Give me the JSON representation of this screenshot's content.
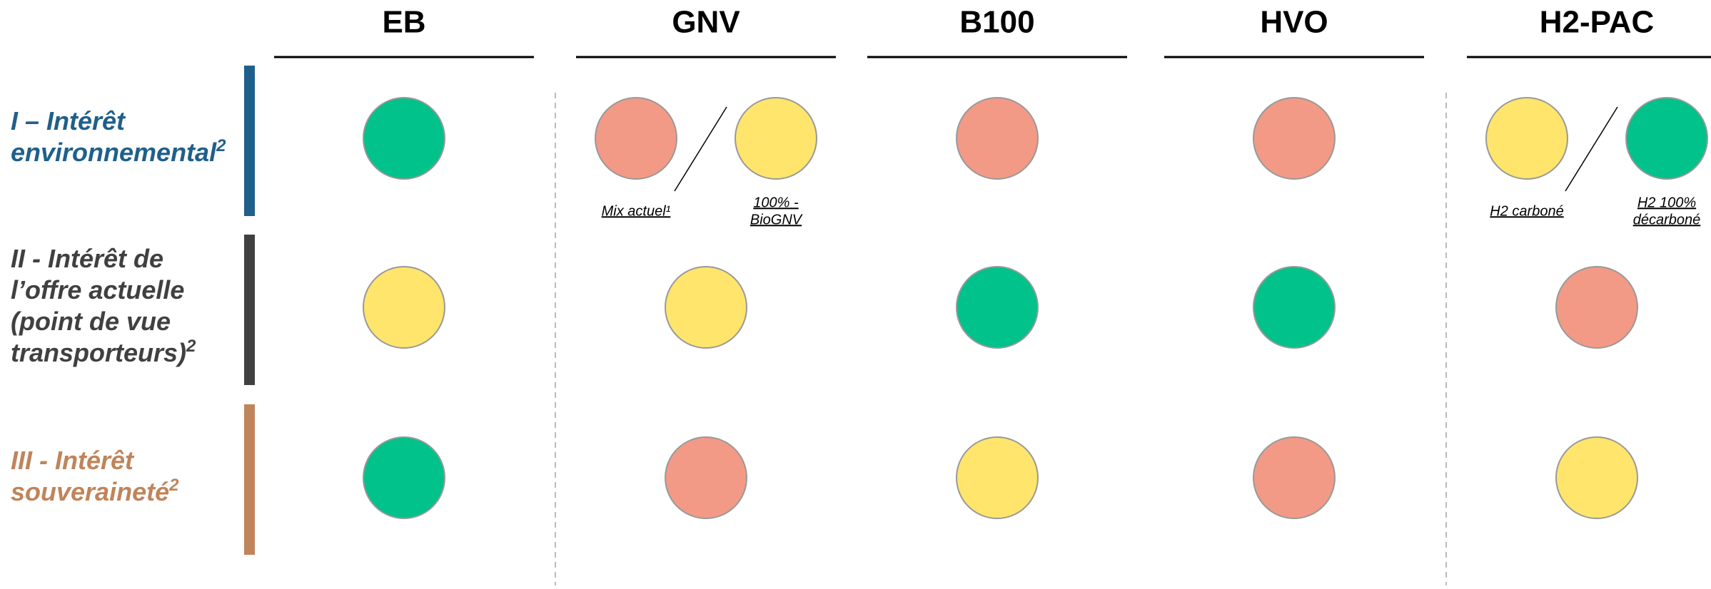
{
  "columns": [
    "EB",
    "GNV",
    "B100",
    "HVO",
    "H2-PAC"
  ],
  "rows": [
    {
      "label_lines": [
        "I – Intérêt",
        "environnemental"
      ],
      "sup": "2",
      "color": "#1f5f8b",
      "cells": [
        [
          {
            "color": "#00c28a"
          }
        ],
        [
          {
            "color": "#f29a86",
            "caption": [
              "Mix actuel¹"
            ]
          },
          {
            "color": "#ffe56b",
            "caption": [
              "100% -",
              "BioGNV"
            ]
          }
        ],
        [
          {
            "color": "#f29a86"
          }
        ],
        [
          {
            "color": "#f29a86"
          }
        ],
        [
          {
            "color": "#ffe56b",
            "caption": [
              "H2 carboné"
            ]
          },
          {
            "color": "#00c28a",
            "caption": [
              "H2 100%",
              "décarboné"
            ]
          }
        ]
      ]
    },
    {
      "label_lines": [
        "II - Intérêt de",
        "l’offre actuelle",
        "(point de vue",
        "transporteurs)"
      ],
      "sup": "2",
      "color": "#404040",
      "cells": [
        [
          {
            "color": "#ffe56b"
          }
        ],
        [
          {
            "color": "#ffe56b"
          }
        ],
        [
          {
            "color": "#00c28a"
          }
        ],
        [
          {
            "color": "#00c28a"
          }
        ],
        [
          {
            "color": "#f29a86"
          }
        ]
      ]
    },
    {
      "label_lines": [
        "III - Intérêt",
        "souveraineté"
      ],
      "sup": "2",
      "color": "#c0845a",
      "cells": [
        [
          {
            "color": "#00c28a"
          }
        ],
        [
          {
            "color": "#f29a86"
          }
        ],
        [
          {
            "color": "#ffe56b"
          }
        ],
        [
          {
            "color": "#f29a86"
          }
        ],
        [
          {
            "color": "#ffe56b"
          }
        ]
      ]
    }
  ]
}
